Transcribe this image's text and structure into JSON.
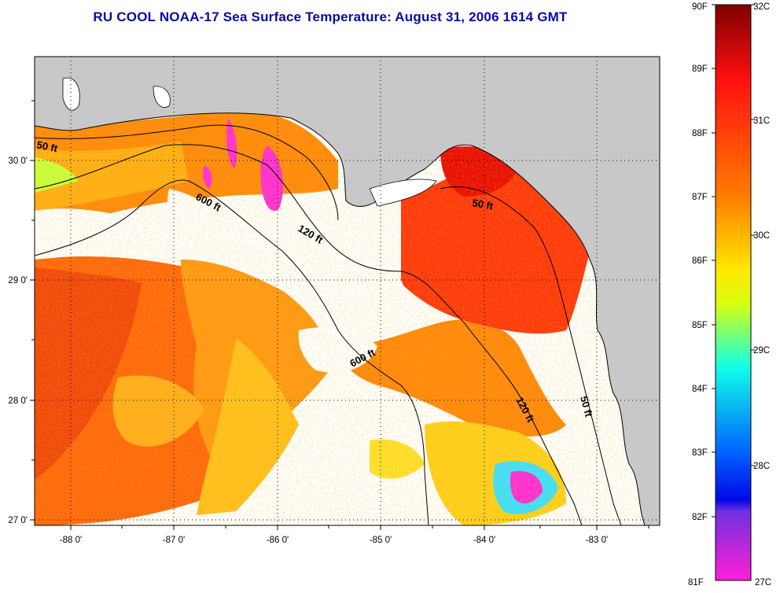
{
  "title": "RU COOL  NOAA-17  Sea Surface Temperature:  August 31, 2006 1614 GMT",
  "map": {
    "lon_labels": [
      "-88 0'",
      "-87 0'",
      "-86 0'",
      "-85 0'",
      "-84 0'",
      "-83 0'"
    ],
    "lat_labels": [
      "30 0'",
      "29 0'",
      "28 0'",
      "27 0'"
    ],
    "isobath_labels": [
      "50 ft",
      "600 ft",
      "120 ft",
      "50 ft",
      "600 ft",
      "120 ft",
      "50 ft"
    ],
    "land_color": "#c8c8c8",
    "cloud_color": "#ffffff"
  },
  "colorbar": {
    "fahrenheit_labels": [
      "90F",
      "89F",
      "88F",
      "87F",
      "86F",
      "85F",
      "84F",
      "83F",
      "82F",
      "81F"
    ],
    "celsius_labels": [
      "32C",
      "31C",
      "30C",
      "29C",
      "28C",
      "27C"
    ],
    "colors": [
      "#7d0000",
      "#ff1010",
      "#ff7a00",
      "#ffe800",
      "#d8ff10",
      "#10ffe8",
      "#0060ff",
      "#0008e8",
      "#ff20d8"
    ]
  }
}
